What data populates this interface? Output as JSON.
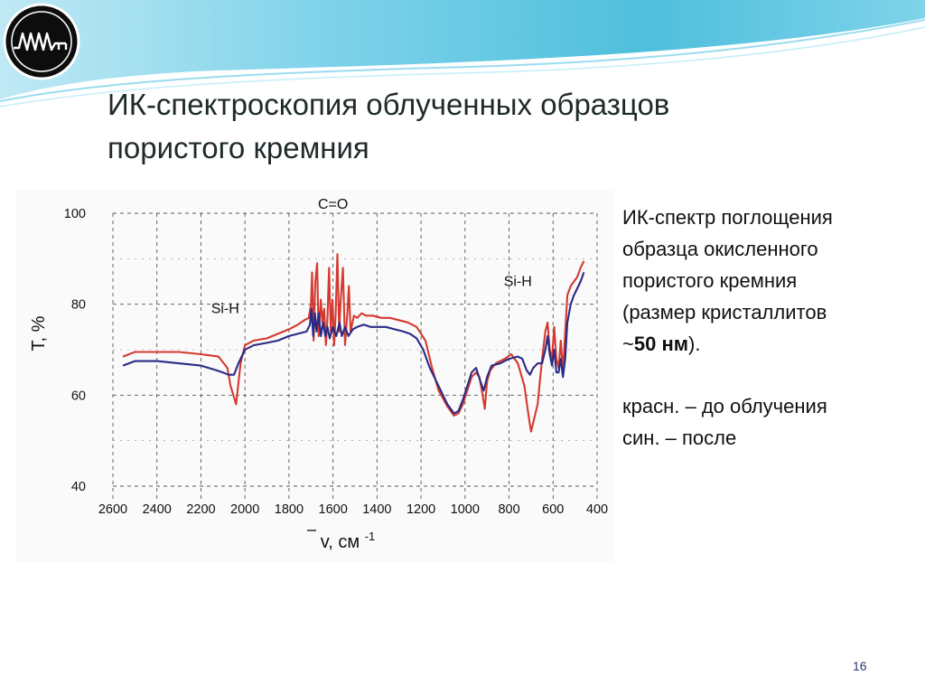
{
  "slide": {
    "title_line1": "ИК-спектроскопия облученных образцов",
    "title_line2": "пористого кремния",
    "page_number": "16"
  },
  "description": {
    "line1": "ИК-спектр поглощения",
    "line2": "образца окисленного",
    "line3": "пористого кремния",
    "line4": "(размер кристаллитов",
    "approx": "~",
    "size_value": "50 нм",
    "close": ").",
    "legend_red": "красн. – до облучения",
    "legend_blue": "син. – после"
  },
  "colors": {
    "red_series": "#d43a30",
    "blue_series": "#2a2a86",
    "header_accent": "#5ec4de",
    "title": "#1f2a2a"
  },
  "chart_data": {
    "type": "line",
    "title": "",
    "xlabel": "v, см",
    "xlabel_superscript": "-1",
    "ylabel": "T, %",
    "xlim": [
      2600,
      400
    ],
    "ylim": [
      40,
      100
    ],
    "x_ticks": [
      "2600",
      "2400",
      "2200",
      "2000",
      "1800",
      "1600",
      "1400",
      "1200",
      "1000",
      "800",
      "600",
      "400"
    ],
    "y_ticks": [
      "100",
      "80",
      "60",
      "40"
    ],
    "annotations": [
      {
        "text": "C=O",
        "x": 1600,
        "y": 101
      },
      {
        "text": "Si-H",
        "x": 2090,
        "y": 78
      },
      {
        "text": "Si-H",
        "x": 760,
        "y": 84
      }
    ],
    "series": [
      {
        "color": "#d43a30",
        "points": [
          [
            2555,
            68.5
          ],
          [
            2500,
            69.5
          ],
          [
            2400,
            69.5
          ],
          [
            2300,
            69.5
          ],
          [
            2200,
            69
          ],
          [
            2120,
            68.5
          ],
          [
            2080,
            66
          ],
          [
            2065,
            62
          ],
          [
            2040,
            58
          ],
          [
            2020,
            67
          ],
          [
            2000,
            71
          ],
          [
            1960,
            72
          ],
          [
            1900,
            72.5
          ],
          [
            1850,
            73.5
          ],
          [
            1800,
            74.5
          ],
          [
            1760,
            75.5
          ],
          [
            1730,
            76.5
          ],
          [
            1710,
            77
          ],
          [
            1700,
            80
          ],
          [
            1695,
            87
          ],
          [
            1688,
            72
          ],
          [
            1680,
            85
          ],
          [
            1672,
            89
          ],
          [
            1665,
            73
          ],
          [
            1655,
            81
          ],
          [
            1648,
            76
          ],
          [
            1640,
            79
          ],
          [
            1632,
            71
          ],
          [
            1625,
            77
          ],
          [
            1618,
            88
          ],
          [
            1610,
            74
          ],
          [
            1602,
            81
          ],
          [
            1595,
            71
          ],
          [
            1588,
            78
          ],
          [
            1580,
            91
          ],
          [
            1572,
            74
          ],
          [
            1565,
            81
          ],
          [
            1555,
            88
          ],
          [
            1545,
            71
          ],
          [
            1535,
            78
          ],
          [
            1528,
            84
          ],
          [
            1520,
            74
          ],
          [
            1505,
            77.5
          ],
          [
            1490,
            77
          ],
          [
            1470,
            78
          ],
          [
            1450,
            77.5
          ],
          [
            1420,
            77.5
          ],
          [
            1380,
            77
          ],
          [
            1340,
            77
          ],
          [
            1300,
            76.5
          ],
          [
            1260,
            76
          ],
          [
            1220,
            75
          ],
          [
            1180,
            72
          ],
          [
            1150,
            66
          ],
          [
            1120,
            61
          ],
          [
            1080,
            57.5
          ],
          [
            1050,
            55.5
          ],
          [
            1030,
            56
          ],
          [
            1010,
            58
          ],
          [
            990,
            61
          ],
          [
            970,
            64
          ],
          [
            950,
            65
          ],
          [
            935,
            64
          ],
          [
            920,
            60
          ],
          [
            910,
            57
          ],
          [
            900,
            63
          ],
          [
            885,
            65.5
          ],
          [
            860,
            67
          ],
          [
            820,
            68
          ],
          [
            790,
            69
          ],
          [
            760,
            67
          ],
          [
            730,
            62
          ],
          [
            710,
            55
          ],
          [
            700,
            52
          ],
          [
            690,
            54
          ],
          [
            670,
            58
          ],
          [
            650,
            68
          ],
          [
            635,
            74
          ],
          [
            625,
            76
          ],
          [
            615,
            70
          ],
          [
            605,
            68
          ],
          [
            595,
            75
          ],
          [
            585,
            68
          ],
          [
            575,
            66
          ],
          [
            565,
            72
          ],
          [
            555,
            65
          ],
          [
            545,
            74
          ],
          [
            535,
            82
          ],
          [
            520,
            84
          ],
          [
            505,
            85
          ],
          [
            490,
            86
          ],
          [
            475,
            88
          ],
          [
            460,
            89.5
          ]
        ]
      },
      {
        "color": "#2a2a86",
        "points": [
          [
            2555,
            66.5
          ],
          [
            2500,
            67.5
          ],
          [
            2400,
            67.5
          ],
          [
            2300,
            67
          ],
          [
            2200,
            66.5
          ],
          [
            2130,
            65.5
          ],
          [
            2100,
            65
          ],
          [
            2075,
            64.5
          ],
          [
            2050,
            64.5
          ],
          [
            2030,
            67
          ],
          [
            2000,
            70
          ],
          [
            1960,
            71
          ],
          [
            1900,
            71.5
          ],
          [
            1850,
            72
          ],
          [
            1800,
            73
          ],
          [
            1760,
            73.5
          ],
          [
            1720,
            74
          ],
          [
            1705,
            75.5
          ],
          [
            1698,
            79
          ],
          [
            1690,
            73
          ],
          [
            1682,
            78
          ],
          [
            1675,
            74
          ],
          [
            1665,
            78
          ],
          [
            1655,
            73
          ],
          [
            1645,
            76
          ],
          [
            1635,
            73
          ],
          [
            1625,
            75
          ],
          [
            1615,
            72.5
          ],
          [
            1600,
            75
          ],
          [
            1585,
            73
          ],
          [
            1570,
            76
          ],
          [
            1560,
            73
          ],
          [
            1545,
            75
          ],
          [
            1530,
            73
          ],
          [
            1510,
            74.5
          ],
          [
            1490,
            75
          ],
          [
            1460,
            75.5
          ],
          [
            1430,
            75
          ],
          [
            1400,
            75
          ],
          [
            1360,
            75
          ],
          [
            1320,
            74.5
          ],
          [
            1280,
            74
          ],
          [
            1250,
            73.5
          ],
          [
            1220,
            72.5
          ],
          [
            1190,
            70
          ],
          [
            1160,
            66
          ],
          [
            1120,
            62
          ],
          [
            1080,
            58
          ],
          [
            1050,
            56
          ],
          [
            1030,
            56.5
          ],
          [
            1010,
            59
          ],
          [
            990,
            62
          ],
          [
            970,
            65
          ],
          [
            950,
            66
          ],
          [
            930,
            63
          ],
          [
            915,
            61
          ],
          [
            900,
            64
          ],
          [
            880,
            66.5
          ],
          [
            840,
            67
          ],
          [
            800,
            68
          ],
          [
            760,
            68.5
          ],
          [
            740,
            68
          ],
          [
            720,
            65.5
          ],
          [
            705,
            64.5
          ],
          [
            690,
            66
          ],
          [
            670,
            67
          ],
          [
            650,
            67
          ],
          [
            635,
            70
          ],
          [
            625,
            73
          ],
          [
            615,
            69
          ],
          [
            605,
            66.5
          ],
          [
            595,
            70
          ],
          [
            585,
            65
          ],
          [
            575,
            65
          ],
          [
            565,
            68
          ],
          [
            555,
            64
          ],
          [
            545,
            68
          ],
          [
            535,
            76
          ],
          [
            520,
            80
          ],
          [
            505,
            82
          ],
          [
            490,
            83.5
          ],
          [
            475,
            85
          ],
          [
            460,
            87
          ]
        ]
      }
    ]
  }
}
